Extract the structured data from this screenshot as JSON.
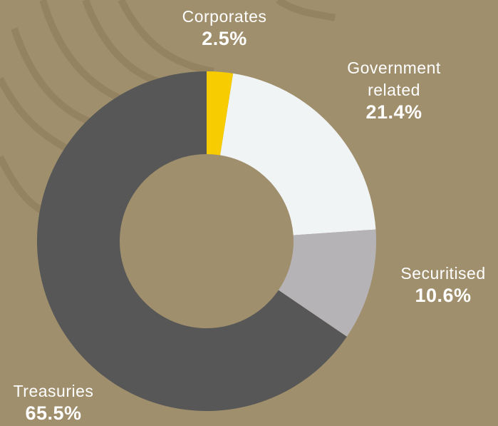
{
  "chart_data": {
    "type": "donut",
    "categories": [
      "Corporates",
      "Government related",
      "Securitised",
      "Treasuries"
    ],
    "values": [
      2.5,
      21.4,
      10.6,
      65.5
    ],
    "value_labels": [
      "2.5%",
      "21.4%",
      "10.6%",
      "65.5%"
    ],
    "colors": [
      "#f7cc00",
      "#f1f4f5",
      "#b6b3b6",
      "#575757"
    ]
  }
}
